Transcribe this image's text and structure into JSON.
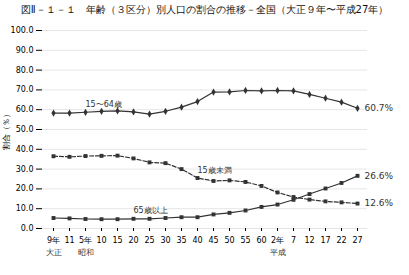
{
  "chart_data": {
    "type": "line",
    "title": "図Ⅱ－１－１　年齢（３区分）別人口の割合の推移－全国（大正９年〜平成27年）",
    "ylabel": "割合（％）",
    "categories": [
      "9年",
      "11",
      "5年",
      "10",
      "15",
      "20",
      "25",
      "30",
      "35",
      "40",
      "45",
      "50",
      "55",
      "60",
      "2年",
      "7",
      "12",
      "17",
      "22",
      "27"
    ],
    "color": "#333333",
    "series": [
      {
        "name": "15〜64歳",
        "marker": "diamond",
        "line_style": "solid",
        "values": [
          58.3,
          58.3,
          58.7,
          59.2,
          59.4,
          58.9,
          57.8,
          59.2,
          61.3,
          64.1,
          68.9,
          69.0,
          69.7,
          69.5,
          69.7,
          69.5,
          67.7,
          65.8,
          63.8,
          60.7
        ]
      },
      {
        "name": "15歳未満",
        "marker": "square",
        "line_style": "dashed",
        "values": [
          36.5,
          36.2,
          36.6,
          36.7,
          36.8,
          35.4,
          33.4,
          33.0,
          30.0,
          25.5,
          24.0,
          24.3,
          23.5,
          21.5,
          18.2,
          15.9,
          14.6,
          13.7,
          13.2,
          12.6
        ]
      },
      {
        "name": "65歳以上",
        "marker": "square",
        "line_style": "solid",
        "values": [
          5.3,
          5.1,
          4.8,
          4.7,
          4.7,
          4.9,
          4.9,
          5.3,
          5.7,
          5.7,
          7.1,
          7.9,
          9.1,
          10.9,
          12.1,
          14.5,
          17.4,
          20.2,
          23.0,
          26.6
        ]
      }
    ],
    "annotations": [
      {
        "text": "大正",
        "x": "9年"
      },
      {
        "text": "昭和",
        "x": "5年"
      },
      {
        "text": "平成",
        "x": "2年"
      },
      {
        "text": "60.7%",
        "x": "27",
        "y": 60.7
      },
      {
        "text": "26.6%",
        "x": "27",
        "y": 26.6
      },
      {
        "text": "12.6%",
        "x": "27",
        "y": 12.6
      }
    ],
    "ylim": [
      0.0,
      100.0
    ],
    "yticks": [
      {
        "value": 0,
        "label": "0.0"
      },
      {
        "value": 10,
        "label": "10.0"
      },
      {
        "value": 20,
        "label": "20.0"
      },
      {
        "value": 30,
        "label": "30.0"
      },
      {
        "value": 40,
        "label": "40.0"
      },
      {
        "value": 50,
        "label": "50.0"
      },
      {
        "value": 60,
        "label": "60.0"
      },
      {
        "value": 70,
        "label": "70.0"
      },
      {
        "value": 80,
        "label": "80.0"
      },
      {
        "value": 90,
        "label": "90.0"
      },
      {
        "value": 100,
        "label": "100.0"
      }
    ],
    "grid": true
  }
}
